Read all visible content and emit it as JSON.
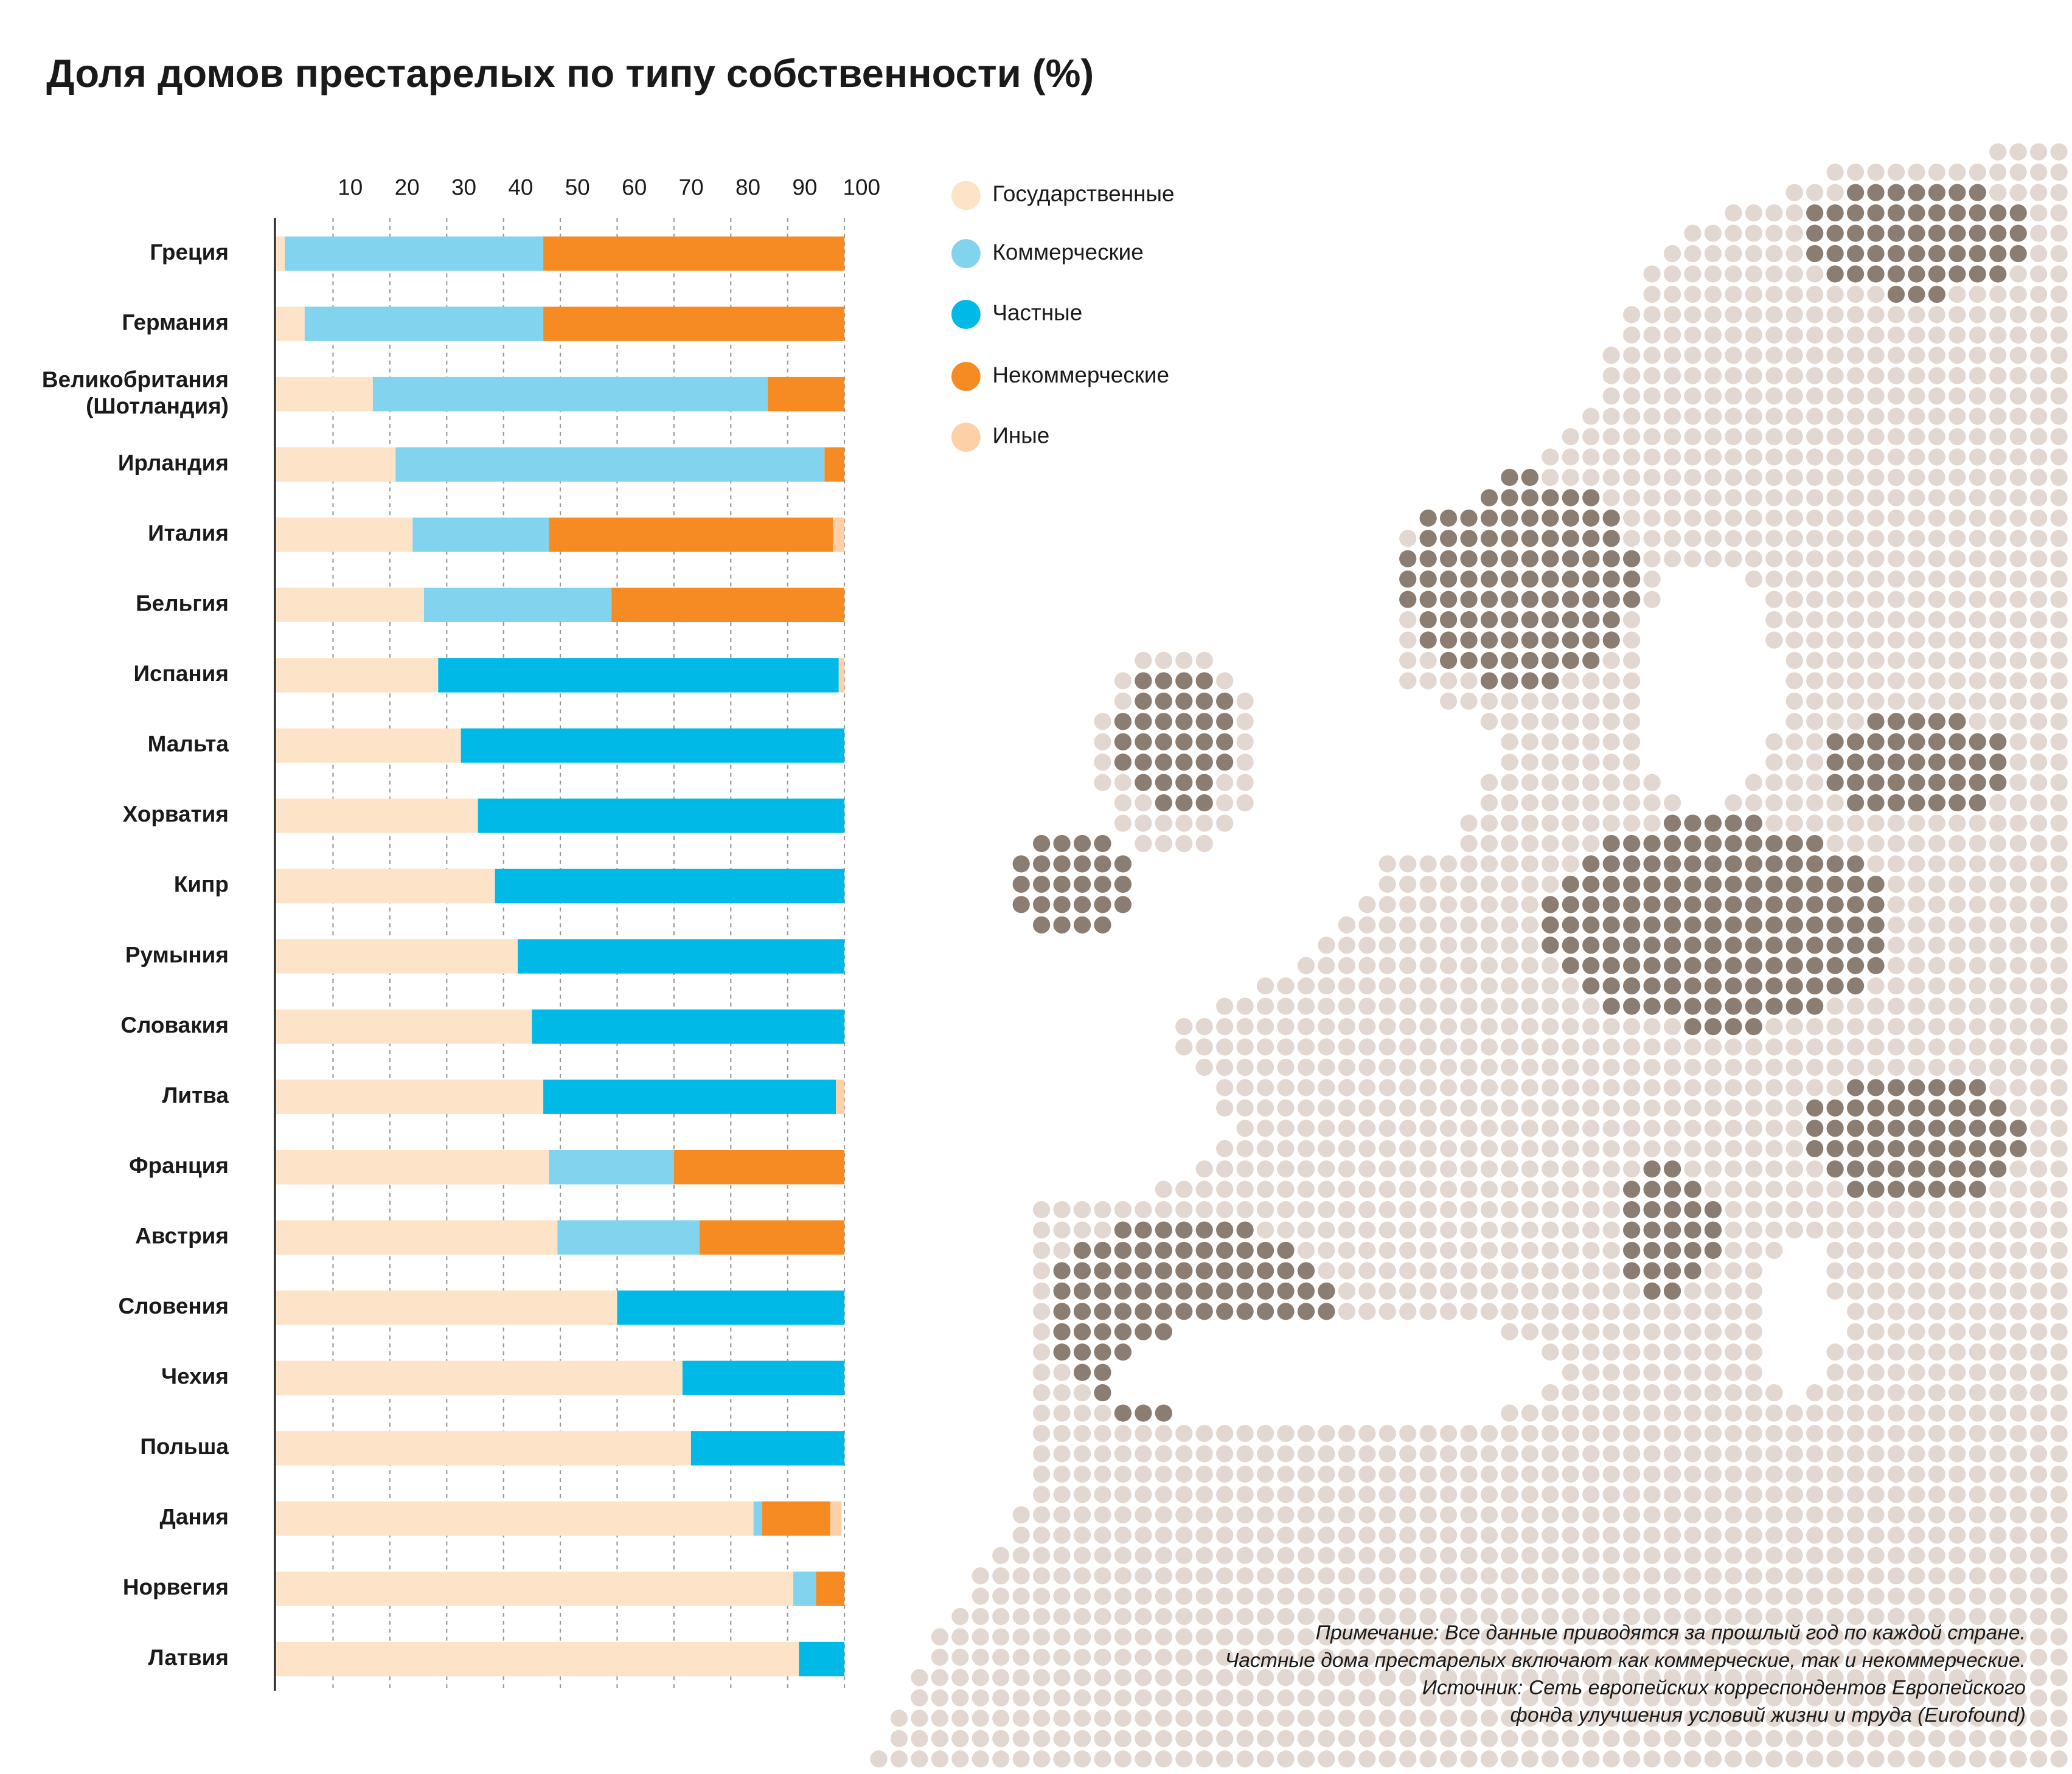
{
  "chart_data": {
    "type": "stacked-bar-horizontal",
    "title": "Доля домов престарелых по типу собственности (%)",
    "categories": [
      "Греция",
      "Германия",
      "Великобритания\n(Шотландия)",
      "Ирландия",
      "Италия",
      "Бельгия",
      "Испания",
      "Мальта",
      "Хорватия",
      "Кипр",
      "Румыния",
      "Словакия",
      "Литва",
      "Франция",
      "Австрия",
      "Словения",
      "Чехия",
      "Польша",
      "Дания",
      "Норвегия",
      "Латвия"
    ],
    "series": [
      {
        "name": "Государственные",
        "color": "#fde3c8",
        "values": [
          1.5,
          5,
          17,
          21,
          24,
          26,
          28.5,
          32.5,
          35.5,
          38.5,
          42.5,
          45,
          47,
          48,
          49.5,
          60,
          71.5,
          73,
          84,
          91,
          92
        ]
      },
      {
        "name": "Коммерческие",
        "color": "#82d3ee",
        "values": [
          45.5,
          42,
          69.5,
          75.5,
          24,
          33,
          null,
          null,
          null,
          null,
          null,
          null,
          null,
          22,
          25,
          null,
          null,
          null,
          1.5,
          4,
          null
        ]
      },
      {
        "name": "Частные",
        "color": "#00b9e6",
        "values": [
          null,
          null,
          null,
          null,
          null,
          null,
          70.5,
          67.5,
          64.5,
          61.5,
          57.5,
          55,
          51.5,
          null,
          null,
          40,
          28.5,
          27,
          null,
          null,
          8
        ]
      },
      {
        "name": "Некоммерческие",
        "color": "#f58b22",
        "values": [
          53,
          53,
          13.5,
          3.5,
          50,
          41,
          null,
          null,
          null,
          null,
          null,
          null,
          null,
          30,
          25.5,
          null,
          null,
          null,
          12,
          5,
          null
        ]
      },
      {
        "name": "Иные",
        "color": "#fdd0a8",
        "values": [
          null,
          null,
          null,
          null,
          2,
          null,
          1,
          null,
          null,
          null,
          null,
          null,
          1.5,
          null,
          null,
          null,
          null,
          null,
          2,
          null,
          null
        ]
      }
    ],
    "xlim": [
      0,
      100
    ],
    "xticks": [
      10,
      20,
      30,
      40,
      50,
      60,
      70,
      80,
      90,
      100
    ],
    "grid": true,
    "note": [
      "Примечание: Все данные приводятся за прошлый год по каждой стране.",
      "Частные дома престарелых включают как коммерческие, так и некоммерческие.",
      "Источник: Сеть европейских корреспондентов Европейского",
      "фонда улучшения условий жизни и труда (Eurofound)"
    ]
  }
}
